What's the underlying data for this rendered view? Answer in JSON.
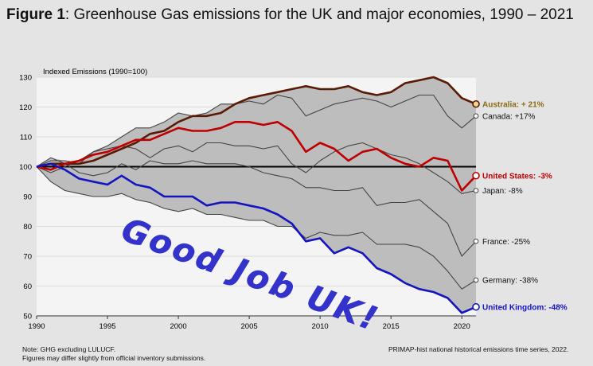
{
  "figure": {
    "label": "Figure 1",
    "title": ": Greenhouse Gas emissions for the UK and major economies, 1990 – 2021"
  },
  "notes": {
    "note1": "Note: GHG excluding LULUCF.",
    "note2": "Figures may differ slightly from official inventory submissions.",
    "source": "PRIMAP-hist national historical emissions time series, 2022."
  },
  "annotation": {
    "text": "Good Job UK!",
    "color": "#3333cc"
  },
  "chart_data": {
    "type": "line",
    "ylabel": "Indexed Emissions (1990=100)",
    "xlim": [
      1990,
      2021
    ],
    "ylim": [
      50,
      130
    ],
    "xticks": [
      1990,
      1995,
      2000,
      2005,
      2010,
      2015,
      2020
    ],
    "yticks": [
      50,
      60,
      70,
      80,
      90,
      100,
      110,
      120,
      130
    ],
    "baseline": 100,
    "band": {
      "color": "#bdbdbd"
    },
    "x": [
      1990,
      1991,
      1992,
      1993,
      1994,
      1995,
      1996,
      1997,
      1998,
      1999,
      2000,
      2001,
      2002,
      2003,
      2004,
      2005,
      2006,
      2007,
      2008,
      2009,
      2010,
      2011,
      2012,
      2013,
      2014,
      2015,
      2016,
      2017,
      2018,
      2019,
      2020,
      2021
    ],
    "series": [
      {
        "name": "Australia",
        "label": "Australia: + 21%",
        "color": "#5a1a05",
        "label_color": "#8a6a10",
        "bold": true,
        "marker_fill": "#f3d48c",
        "values": [
          100,
          101,
          101,
          101,
          102,
          104,
          106,
          108,
          111,
          112,
          115,
          117,
          117,
          118,
          121,
          123,
          124,
          125,
          126,
          127,
          126,
          126,
          127,
          125,
          124,
          125,
          128,
          129,
          130,
          128,
          123,
          121
        ]
      },
      {
        "name": "Canada",
        "label": "Canada: +17%",
        "color": "#444444",
        "label_color": "#111111",
        "bold": false,
        "marker_fill": "#ffffff",
        "values": [
          100,
          98,
          100,
          102,
          105,
          107,
          110,
          113,
          113,
          115,
          118,
          117,
          118,
          121,
          121,
          122,
          121,
          124,
          123,
          117,
          119,
          121,
          122,
          123,
          122,
          120,
          122,
          124,
          124,
          117,
          113,
          117
        ]
      },
      {
        "name": "United States",
        "label": "United States: -3%",
        "color": "#c00000",
        "label_color": "#c00000",
        "bold": true,
        "marker_fill": "#ffffff",
        "values": [
          100,
          99,
          101,
          102,
          104,
          105,
          107,
          109,
          109,
          111,
          113,
          112,
          112,
          113,
          115,
          115,
          114,
          115,
          112,
          105,
          108,
          106,
          102,
          105,
          106,
          103,
          101,
          100,
          103,
          102,
          92,
          97
        ]
      },
      {
        "name": "Japan",
        "label": "Japan: -8%",
        "color": "#444444",
        "label_color": "#111111",
        "bold": false,
        "marker_fill": "#ffffff",
        "values": [
          100,
          102,
          102,
          101,
          105,
          106,
          107,
          106,
          103,
          106,
          107,
          105,
          108,
          108,
          107,
          107,
          106,
          107,
          101,
          98,
          102,
          105,
          107,
          108,
          106,
          104,
          103,
          101,
          98,
          95,
          91,
          92
        ]
      },
      {
        "name": "France",
        "label": "France: -25%",
        "color": "#444444",
        "label_color": "#111111",
        "bold": false,
        "marker_fill": "#ffffff",
        "values": [
          100,
          103,
          101,
          98,
          97,
          98,
          101,
          99,
          102,
          101,
          101,
          102,
          101,
          101,
          101,
          100,
          98,
          97,
          96,
          93,
          93,
          92,
          92,
          93,
          87,
          88,
          88,
          89,
          85,
          81,
          70,
          75
        ]
      },
      {
        "name": "Germany",
        "label": "Germany: -38%",
        "color": "#444444",
        "label_color": "#111111",
        "bold": false,
        "marker_fill": "#ffffff",
        "values": [
          100,
          95,
          92,
          91,
          90,
          90,
          91,
          89,
          88,
          86,
          85,
          86,
          84,
          84,
          83,
          82,
          82,
          80,
          80,
          76,
          78,
          77,
          77,
          78,
          74,
          74,
          74,
          73,
          70,
          65,
          59,
          62
        ]
      },
      {
        "name": "United Kingdom",
        "label": "United Kingdom: -48%",
        "color": "#1414c0",
        "label_color": "#1414c0",
        "bold": true,
        "marker_fill": "#ffffff",
        "values": [
          100,
          101,
          99,
          96,
          95,
          94,
          97,
          94,
          93,
          90,
          90,
          90,
          87,
          88,
          88,
          87,
          86,
          84,
          81,
          75,
          76,
          71,
          73,
          71,
          66,
          64,
          61,
          59,
          58,
          56,
          51,
          53
        ]
      }
    ]
  }
}
